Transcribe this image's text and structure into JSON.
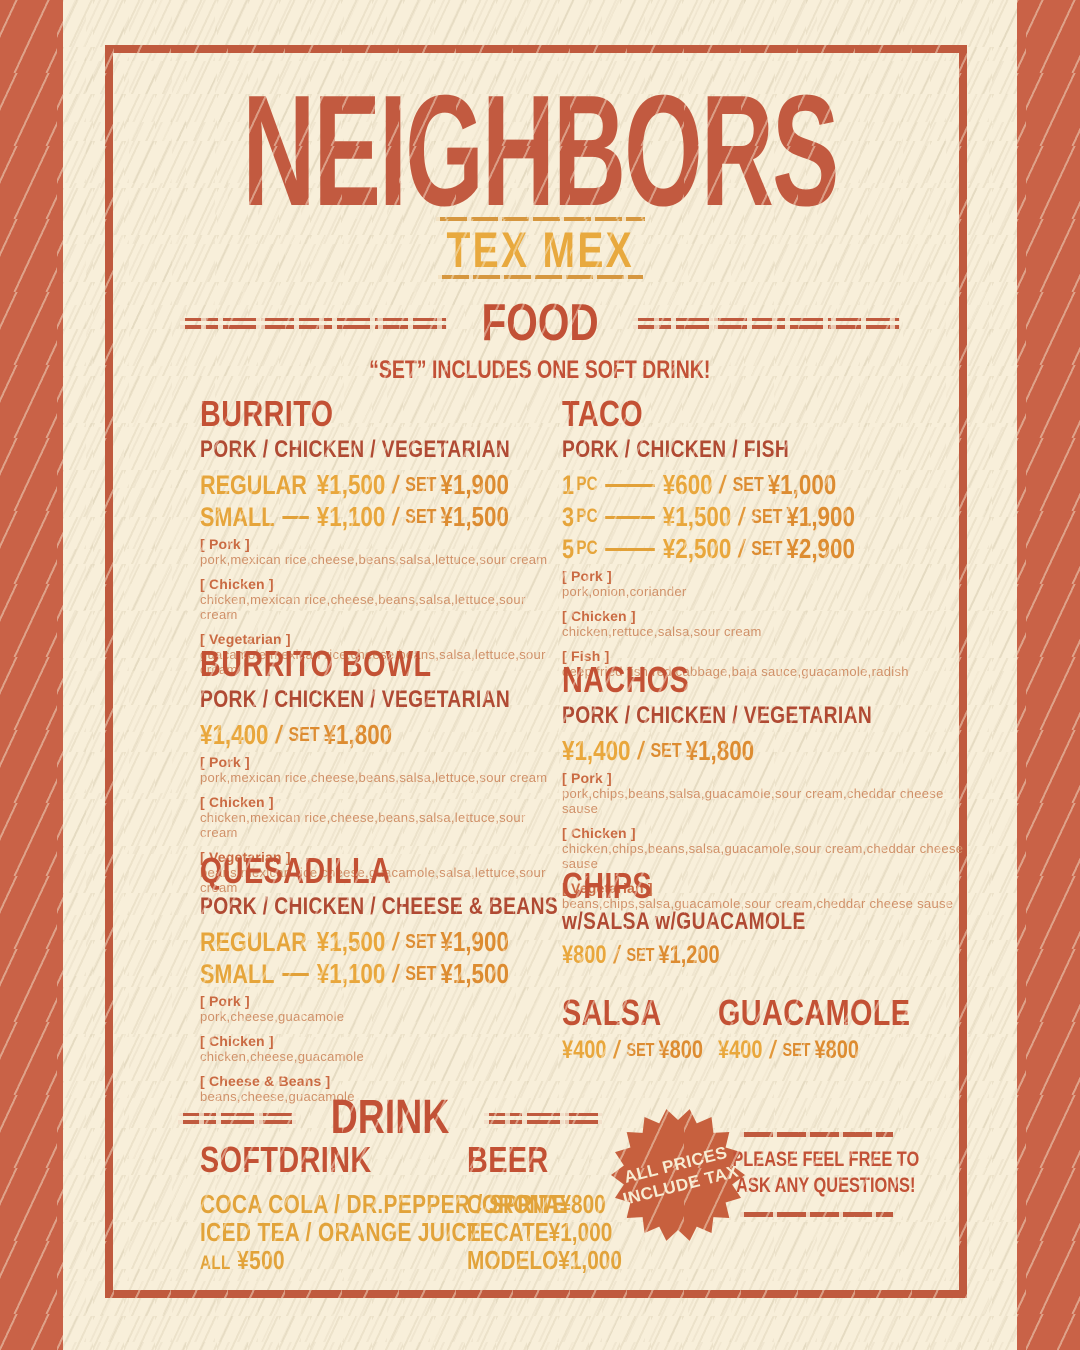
{
  "ui": {
    "slash": "/"
  },
  "colors": {
    "background": "#f8efda",
    "frame_band": "#c96247",
    "inner_border": "#c05a3e",
    "title_red": "#c25a40",
    "heading_red": "#c25136",
    "variant_dark_red": "#b04a33",
    "price_gold": "#e9a73c",
    "set_price_orange": "#dd8c31",
    "ingredient_label": "#ca6a42",
    "ingredient_text": "#d09068",
    "badge_orange": "#c7603e",
    "subtitle_gold": "#e8a93e"
  },
  "header": {
    "title": "NEIGHBORS",
    "subtitle": "TEX MEX"
  },
  "food": {
    "heading": "FOOD",
    "note": "“SET” INCLUDES ONE SOFT DRINK!",
    "items": [
      {
        "name": "BURRITO",
        "variants": "PORK / CHICKEN / VEGETARIAN",
        "rows": [
          {
            "label": "REGULAR",
            "price": "¥1,500",
            "set_label": "SET",
            "set_price": "¥1,900"
          },
          {
            "label": "SMALL",
            "price": "¥1,100",
            "set_label": "SET",
            "set_price": "¥1,500"
          }
        ],
        "details": [
          {
            "label": "[ Pork ]",
            "text": "pork,mexican rice,cheese,beans,salsa,lettuce,sour cream"
          },
          {
            "label": "[ Chicken ]",
            "text": "chicken,mexican rice,cheese,beans,salsa,lettuce,sour cream"
          },
          {
            "label": "[ Vegetarian ]",
            "text": "guacamole,mexican rice,cheese,beans,salsa,lettuce,sour cream"
          }
        ]
      },
      {
        "name": "TACO",
        "variants": "PORK / CHICKEN / FISH",
        "rows": [
          {
            "label": "1",
            "unit": "PC",
            "price": "¥600",
            "set_label": "SET",
            "set_price": "¥1,000"
          },
          {
            "label": "3",
            "unit": "PC",
            "price": "¥1,500",
            "set_label": "SET",
            "set_price": "¥1,900"
          },
          {
            "label": "5",
            "unit": "PC",
            "price": "¥2,500",
            "set_label": "SET",
            "set_price": "¥2,900"
          }
        ],
        "details": [
          {
            "label": "[ Pork ]",
            "text": "pork,onion,coriander"
          },
          {
            "label": "[ Chicken ]",
            "text": "chicken,rettuce,salsa,sour cream"
          },
          {
            "label": "[ Fish ]",
            "text": "deep fried fish,red cabbage,baja sauce,guacamole,radish"
          }
        ]
      },
      {
        "name": "BURRITO BOWL",
        "variants": "PORK / CHICKEN / VEGETARIAN",
        "price": "¥1,400",
        "set_label": "SET",
        "set_price": "¥1,800",
        "details": [
          {
            "label": "[ Pork ]",
            "text": "pork,mexican rice,cheese,beans,salsa,lettuce,sour cream"
          },
          {
            "label": "[ Chicken ]",
            "text": "chicken,mexican rice,cheese,beans,salsa,lettuce,sour cream"
          },
          {
            "label": "[ Vegetarian ]",
            "text": "beans,mexican rice,cheese,guacamole,salsa,lettuce,sour cream"
          }
        ]
      },
      {
        "name": "NACHOS",
        "variants": "PORK / CHICKEN / VEGETARIAN",
        "price": "¥1,400",
        "set_label": "SET",
        "set_price": "¥1,800",
        "details": [
          {
            "label": "[ Pork ]",
            "text": "pork,chips,beans,salsa,guacamole,sour cream,cheddar cheese sause"
          },
          {
            "label": "[ Chicken ]",
            "text": "chicken,chips,beans,salsa,guacamole,sour cream,cheddar cheese sause"
          },
          {
            "label": "[ Vegetarian ]",
            "text": "beans,chips,salsa,guacamole,sour cream,cheddar cheese sause"
          }
        ]
      },
      {
        "name": "QUESADILLA",
        "variants": "PORK / CHICKEN / CHEESE & BEANS",
        "rows": [
          {
            "label": "REGULAR",
            "price": "¥1,500",
            "set_label": "SET",
            "set_price": "¥1,900"
          },
          {
            "label": "SMALL",
            "price": "¥1,100",
            "set_label": "SET",
            "set_price": "¥1,500"
          }
        ],
        "details": [
          {
            "label": "[ Pork ]",
            "text": "pork,cheese,guacamole"
          },
          {
            "label": "[ Chicken ]",
            "text": "chicken,cheese,guacamole"
          },
          {
            "label": "[ Cheese & Beans ]",
            "text": "beans,cheese,guacamole"
          }
        ]
      },
      {
        "name": "CHIPS",
        "variants": "w/SALSA  w/GUACAMOLE",
        "price": "¥800",
        "set_label": "SET",
        "set_price": "¥1,200"
      },
      {
        "name": "SALSA",
        "price": "¥400",
        "set_label": "SET",
        "set_price": "¥800"
      },
      {
        "name": "GUACAMOLE",
        "price": "¥400",
        "set_label": "SET",
        "set_price": "¥800"
      }
    ]
  },
  "drink": {
    "heading": "DRINK",
    "softdrink": {
      "name": "SOFTDRINK",
      "line1": "COCA COLA / DR.PEPPER / SPRITE",
      "line2": "ICED TEA / ORANGE JUICE",
      "all_label": "ALL",
      "all_price": "¥500"
    },
    "beer": {
      "name": "BEER",
      "items": [
        {
          "name": "CORONA",
          "price": "¥800"
        },
        {
          "name": "TECATE",
          "price": "¥1,000"
        },
        {
          "name": "MODELO",
          "price": "¥1,000"
        }
      ]
    },
    "badge": {
      "line1": "ALL PRICES",
      "line2": "INCLUDE TAX"
    },
    "notice": {
      "line1": "PLEASE FEEL FREE TO",
      "line2": "ASK ANY QUESTIONS!"
    }
  }
}
